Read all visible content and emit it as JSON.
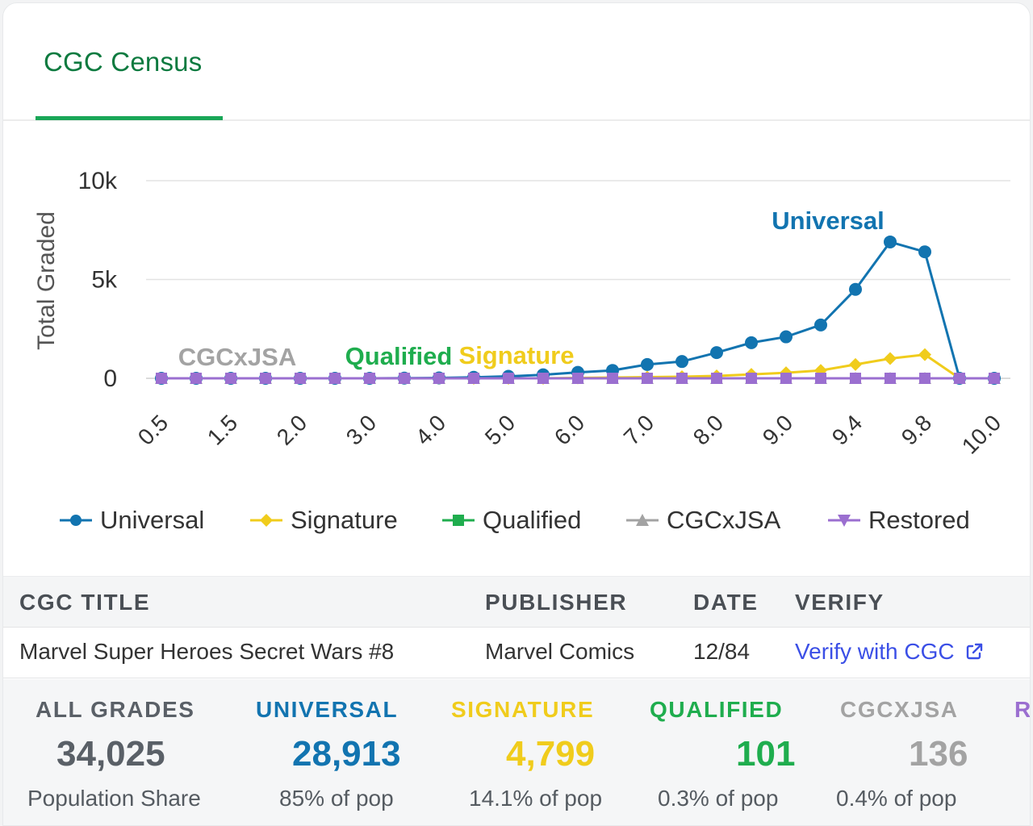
{
  "tabs": [
    {
      "label": "CGC Census"
    }
  ],
  "colors": {
    "universal": "#1274b0",
    "signature": "#f0cc1c",
    "qualified": "#1fad4e",
    "cgcxjsa": "#a3a3a3",
    "restored": "#9b6fd0",
    "accent": "#19a657"
  },
  "chart_data": {
    "type": "line",
    "ylabel": "Total Graded",
    "xlabel": "",
    "yticks": [
      "0",
      "5k",
      "10k"
    ],
    "ylim": [
      0,
      10000
    ],
    "x": [
      "0.5",
      "1.0",
      "1.5",
      "1.8",
      "2.0",
      "2.5",
      "3.0",
      "3.5",
      "4.0",
      "4.5",
      "5.0",
      "5.5",
      "6.0",
      "6.5",
      "7.0",
      "7.5",
      "8.0",
      "8.5",
      "9.0",
      "9.2",
      "9.4",
      "9.6",
      "9.8",
      "9.9",
      "10.0"
    ],
    "x_tick_labels": [
      "0.5",
      "1.5",
      "2.0",
      "3.0",
      "4.0",
      "5.0",
      "6.0",
      "7.0",
      "8.0",
      "9.0",
      "9.4",
      "9.8",
      "10.0"
    ],
    "series": [
      {
        "name": "Universal",
        "marker": "circle",
        "values": [
          0,
          0,
          0,
          0,
          0,
          0,
          0,
          10,
          20,
          50,
          100,
          180,
          300,
          400,
          700,
          850,
          1300,
          1800,
          2100,
          2700,
          4500,
          6900,
          6400,
          0,
          0
        ]
      },
      {
        "name": "Signature",
        "marker": "diamond",
        "values": [
          0,
          0,
          0,
          0,
          0,
          0,
          0,
          0,
          0,
          0,
          0,
          0,
          20,
          40,
          60,
          80,
          120,
          200,
          280,
          400,
          700,
          1000,
          1200,
          0,
          0
        ]
      },
      {
        "name": "Qualified",
        "marker": "square",
        "values": [
          0,
          0,
          0,
          0,
          0,
          0,
          0,
          0,
          0,
          0,
          0,
          0,
          0,
          0,
          0,
          0,
          0,
          0,
          0,
          0,
          0,
          0,
          0,
          0,
          0
        ]
      },
      {
        "name": "CGCxJSA",
        "marker": "triangle",
        "values": [
          0,
          0,
          0,
          0,
          0,
          0,
          0,
          0,
          0,
          0,
          0,
          0,
          0,
          0,
          0,
          0,
          0,
          0,
          0,
          0,
          0,
          0,
          0,
          0,
          0
        ]
      },
      {
        "name": "Restored",
        "marker": "triangle-down",
        "values": [
          0,
          0,
          0,
          0,
          0,
          0,
          0,
          0,
          0,
          0,
          0,
          0,
          0,
          0,
          0,
          0,
          0,
          0,
          0,
          0,
          0,
          0,
          0,
          0,
          0
        ]
      }
    ],
    "annotations": [
      {
        "text": "Universal",
        "series": "Universal"
      },
      {
        "text": "Signature",
        "series": "Signature"
      },
      {
        "text": "Qualified",
        "series": "Qualified"
      },
      {
        "text": "CGCxJSA",
        "series": "CGCxJSA"
      }
    ],
    "grid": true,
    "legend": "bottom"
  },
  "legend": [
    {
      "label": "Universal",
      "icon": "circle-marker-icon"
    },
    {
      "label": "Signature",
      "icon": "diamond-marker-icon"
    },
    {
      "label": "Qualified",
      "icon": "square-marker-icon"
    },
    {
      "label": "CGCxJSA",
      "icon": "triangle-marker-icon"
    },
    {
      "label": "Restored",
      "icon": "triangle-down-marker-icon"
    }
  ],
  "info_table": {
    "headers": {
      "title": "CGC TITLE",
      "publisher": "PUBLISHER",
      "date": "DATE",
      "verify": "VERIFY"
    },
    "row": {
      "title": "Marvel Super Heroes Secret Wars #8",
      "publisher": "Marvel Comics",
      "date": "12/84",
      "verify": "Verify with CGC",
      "verify_icon": "external-link-icon"
    }
  },
  "stats": [
    {
      "label": "ALL GRADES",
      "value": "34,025",
      "sub": "Population Share"
    },
    {
      "label": "UNIVERSAL",
      "value": "28,913",
      "sub": "85% of pop"
    },
    {
      "label": "SIGNATURE",
      "value": "4,799",
      "sub": "14.1% of pop"
    },
    {
      "label": "QUALIFIED",
      "value": "101",
      "sub": "0.3% of pop"
    },
    {
      "label": "CGCXJSA",
      "value": "136",
      "sub": "0.4% of pop"
    },
    {
      "label": "R"
    }
  ]
}
